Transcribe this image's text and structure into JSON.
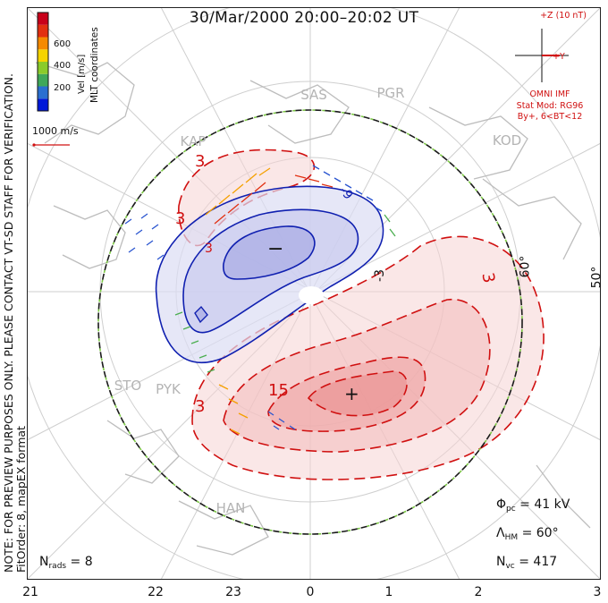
{
  "title": "30/Mar/2000 20:00–20:02 UT",
  "x_ticks": [
    "21",
    "22",
    "23",
    "0",
    "1",
    "2",
    "3"
  ],
  "colorbar": {
    "label": "Vel [m/s]",
    "ticks": [
      "600",
      "400",
      "200"
    ],
    "colors": [
      "#0018d8",
      "#2a6fd0",
      "#3fa85a",
      "#8acb2b",
      "#f5d400",
      "#f58a00",
      "#e23010",
      "#c8001a"
    ]
  },
  "mlt_label": "MLT coordinates",
  "scale_label": "1000 m/s",
  "stations": [
    "SAS",
    "PGR",
    "KAP",
    "KOD",
    "STO",
    "PYK",
    "HAN"
  ],
  "lat_labels": [
    "60°",
    "50°"
  ],
  "contour_labels": [
    "3",
    "3",
    "3",
    "-3",
    "-9",
    "3",
    "3",
    "-3",
    "3",
    "15",
    "-3"
  ],
  "pole_markers": [
    "−",
    "+"
  ],
  "imf": {
    "axis_z": "+Z (10 nT)",
    "axis_y": "+Y",
    "source": "OMNI IMF",
    "model": "Stat Mod: RG96",
    "condition": "By+, 6<BT<12"
  },
  "stats": {
    "phi_pc": "41 kV",
    "lambda_hm": "60°",
    "n_vc": "417",
    "n_rads": "8"
  },
  "note": "NOTE: FOR PREVIEW PURPOSES ONLY. PLEASE CONTACT VT-SD STAFF FOR VERIFICATION.",
  "fitorder": "FitOrder: 8, mapEX format",
  "colors": {
    "positive": "#d01010",
    "negative": "#1020b0",
    "pos_fill": "#f3c6c6",
    "neg_fill": "#c6c8ee"
  }
}
